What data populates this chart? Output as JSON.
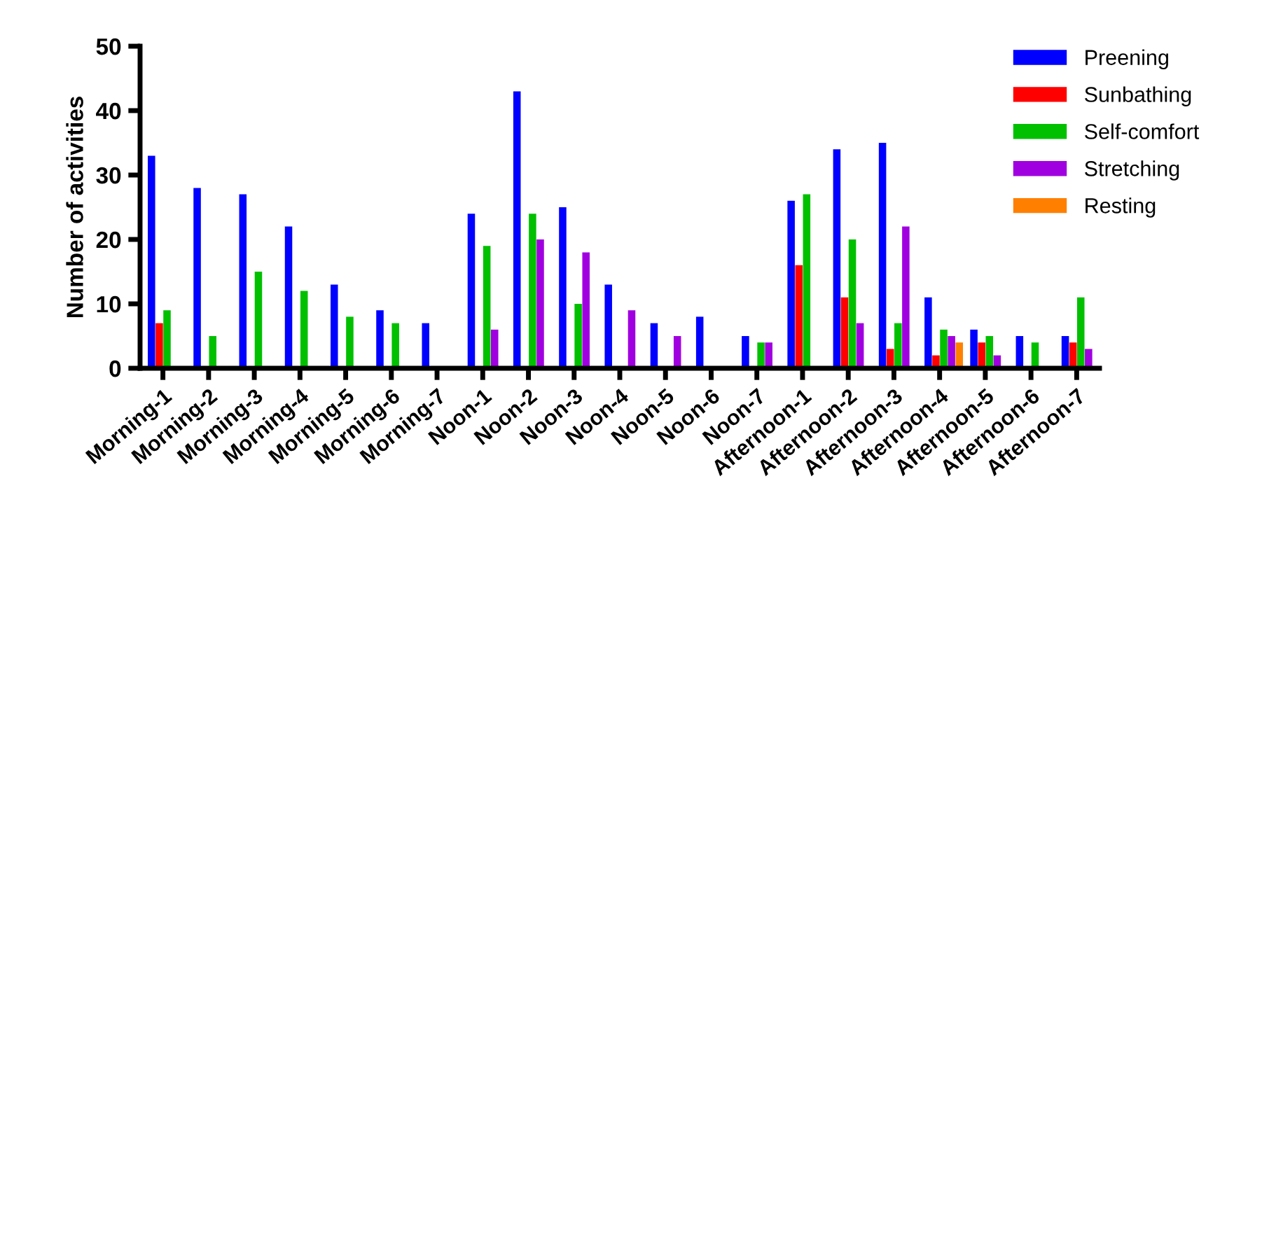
{
  "chart_data": {
    "type": "bar",
    "ylabel": "Number of activities",
    "categories": [
      "Morning-1",
      "Morning-2",
      "Morning-3",
      "Morning-4",
      "Morning-5",
      "Morning-6",
      "Morning-7",
      "Noon-1",
      "Noon-2",
      "Noon-3",
      "Noon-4",
      "Noon-5",
      "Noon-6",
      "Noon-7",
      "Afternoon-1",
      "Afternoon-2",
      "Afternoon-3",
      "Afternoon-4",
      "Afternoon-5",
      "Afternoon-6",
      "Afternoon-7"
    ],
    "series": [
      {
        "name": "Preening",
        "color": "#0000ff",
        "values": [
          33,
          28,
          27,
          22,
          13,
          9,
          7,
          24,
          43,
          25,
          13,
          7,
          8,
          5,
          26,
          34,
          35,
          11,
          6,
          5,
          5
        ]
      },
      {
        "name": "Sunbathing",
        "color": "#ff0000",
        "values": [
          7,
          0,
          0,
          0,
          0,
          0,
          0,
          0,
          0,
          0,
          0,
          0,
          0,
          0,
          16,
          11,
          3,
          2,
          4,
          0,
          4
        ]
      },
      {
        "name": "Self-comfort",
        "color": "#00c000",
        "values": [
          9,
          5,
          15,
          12,
          8,
          7,
          0,
          19,
          24,
          10,
          0,
          0,
          0,
          4,
          27,
          20,
          7,
          6,
          5,
          4,
          11
        ]
      },
      {
        "name": "Stretching",
        "color": "#a000e0",
        "values": [
          0,
          0,
          0,
          0,
          0,
          0,
          0,
          6,
          20,
          18,
          9,
          5,
          0,
          4,
          0,
          7,
          22,
          5,
          2,
          0,
          3
        ]
      },
      {
        "name": "Resting",
        "color": "#ff8000",
        "values": [
          0,
          0,
          0,
          0,
          0,
          0,
          0,
          0,
          0,
          0,
          0,
          0,
          0,
          0,
          0,
          0,
          0,
          4,
          0,
          0,
          0
        ]
      }
    ],
    "ylim": [
      0,
      50
    ],
    "yticks": [
      0,
      10,
      20,
      30,
      40,
      50
    ],
    "grid": false,
    "legend": "top right"
  }
}
